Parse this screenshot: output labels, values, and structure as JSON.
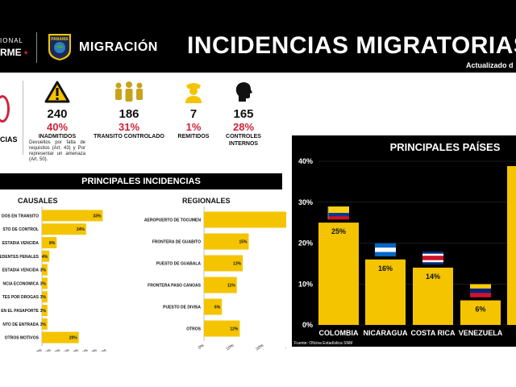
{
  "header": {
    "left_logo_top": "IONAL",
    "left_logo_bottom": "RME",
    "brand": "MIGRACIÓN",
    "emblem_text": "PANAMA",
    "title": "INCIDENCIAS MIGRATORIAS",
    "updated": "Actualizado d"
  },
  "left_edge": {
    "label": "CIAS"
  },
  "stats": [
    {
      "icon": "warning-icon",
      "number": "240",
      "percent": "40%",
      "label": "INADMITIDOS",
      "note": "Devueltos por falta de requisitos (Art. 43) y Por representar un amenaza (Art. 50)."
    },
    {
      "icon": "group-people-icon",
      "number": "186",
      "percent": "31%",
      "label": "TRANSITO CONTROLADO",
      "note": ""
    },
    {
      "icon": "officer-icon",
      "number": "7",
      "percent": "1%",
      "label": "REMITIDOS",
      "note": ""
    },
    {
      "icon": "head-profile-icon",
      "number": "165",
      "percent": "28%",
      "label": "CONTROLES INTERNOS",
      "note": ""
    }
  ],
  "incidencias": {
    "header": "PRINCIPALES INCIDENCIAS",
    "causales_title": "CAUSALES",
    "regionales_title": "REGIONALES",
    "source": "Fuente: Oficina Estadística SNM"
  },
  "colors": {
    "accent": "#f5c400",
    "red": "#d0233a",
    "dark": "#000000"
  },
  "chart_data": [
    {
      "type": "bar",
      "orientation": "horizontal",
      "title": "CAUSALES",
      "categories": [
        "DOS EN TRANSITO",
        "STO DE CONTROL",
        "ESTADIA VENCIDA",
        "EDENTES PENALES",
        "ESTADIA VENCIDA",
        "NCIA ECONOMICA",
        "TES POR DROGAS",
        "EN EL PASAPORTE",
        "NTO DE ENTRADA",
        "OTROS MOTIVOS"
      ],
      "values": [
        33,
        24,
        8,
        4,
        3,
        3,
        3,
        3,
        3,
        20
      ],
      "data_labels": [
        "33%",
        "24%",
        "8%",
        "4%",
        "3%",
        "3%",
        "3%",
        "3%",
        "3%",
        "20%"
      ],
      "x_ticks": [
        "0%",
        "5%",
        "10%",
        "15%",
        "20%",
        "25%",
        "30%",
        "35%"
      ],
      "xlim": [
        0,
        35
      ]
    },
    {
      "type": "bar",
      "orientation": "horizontal",
      "title": "REGIONALES",
      "categories": [
        "AEROPUERTO DE TOCUMEN",
        "FRONTERA DE GUABITO",
        "PUESTO DE GUABALA",
        "FRONTERA PASO CANOAS",
        "PUESTO DE DIVISA",
        "OTROS"
      ],
      "values": [
        45,
        15,
        13,
        11,
        6,
        12
      ],
      "data_labels": [
        "45%",
        "15%",
        "13%",
        "11%",
        "6%",
        "12%"
      ],
      "x_ticks": [
        "0%",
        "10%",
        "20%",
        "30%",
        "40%",
        "50%"
      ],
      "xlim": [
        0,
        50
      ]
    },
    {
      "type": "bar",
      "orientation": "vertical",
      "title": "PRINCIPALES PAÍSES",
      "categories": [
        "COLOMBIA",
        "NICARAGUA",
        "COSTA RICA",
        "VENEZUELA"
      ],
      "values": [
        25,
        16,
        14,
        6
      ],
      "data_labels": [
        "25%",
        "16%",
        "14%",
        "6%"
      ],
      "flags": [
        "colombia-flag-icon",
        "nicaragua-flag-icon",
        "costa-rica-flag-icon",
        "venezuela-flag-icon"
      ],
      "y_ticks": [
        "0%",
        "10%",
        "20%",
        "30%",
        "40%"
      ],
      "ylim": [
        0,
        40
      ]
    }
  ]
}
